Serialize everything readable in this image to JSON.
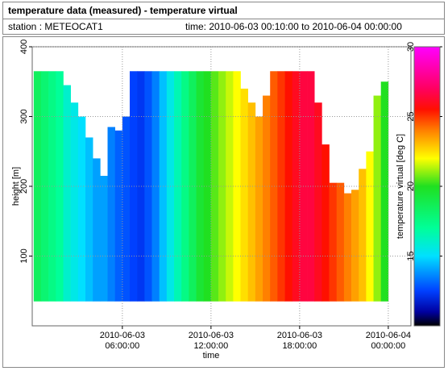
{
  "chart_data": {
    "type": "heatmap",
    "title": "temperature data (measured) - temperature virtual",
    "station": "station : METEOCAT1",
    "time_range": "time: 2010-06-03 00:10:00 to 2010-06-04 00:00:00",
    "xlabel": "time",
    "ylabel": "height [m]",
    "colorbar_label": "temperature virtual [deg C]",
    "xlim": [
      "2010-06-02 23:54:00",
      "2010-06-04 01:32:00"
    ],
    "xticks": [
      "2010-06-03 06:00:00",
      "2010-06-03 12:00:00",
      "2010-06-03 18:00:00",
      "2010-06-04 00:00:00"
    ],
    "ylim": [
      0,
      400
    ],
    "yticks": [
      100,
      200,
      300,
      400
    ],
    "clim": [
      10,
      30
    ],
    "cticks": [
      15,
      20,
      25,
      30
    ],
    "grid": true,
    "colormap": [
      {
        "value": 10,
        "color": "#000000"
      },
      {
        "value": 11,
        "color": "#0000a0"
      },
      {
        "value": 12.5,
        "color": "#0040ff"
      },
      {
        "value": 15,
        "color": "#00e0ff"
      },
      {
        "value": 17,
        "color": "#00ff99"
      },
      {
        "value": 20,
        "color": "#20e020"
      },
      {
        "value": 22,
        "color": "#ffff00"
      },
      {
        "value": 24,
        "color": "#ff8000"
      },
      {
        "value": 25.5,
        "color": "#ff1000"
      },
      {
        "value": 27,
        "color": "#ff0060"
      },
      {
        "value": 30,
        "color": "#ff00ff"
      }
    ],
    "base": 35,
    "x": [
      "2010-06-03 00:00:00",
      "2010-06-03 00:30:00",
      "2010-06-03 01:00:00",
      "2010-06-03 01:30:00",
      "2010-06-03 02:00:00",
      "2010-06-03 02:30:00",
      "2010-06-03 03:00:00",
      "2010-06-03 03:30:00",
      "2010-06-03 04:00:00",
      "2010-06-03 04:30:00",
      "2010-06-03 05:00:00",
      "2010-06-03 05:30:00",
      "2010-06-03 06:00:00",
      "2010-06-03 06:30:00",
      "2010-06-03 07:00:00",
      "2010-06-03 07:30:00",
      "2010-06-03 08:00:00",
      "2010-06-03 08:30:00",
      "2010-06-03 09:00:00",
      "2010-06-03 09:30:00",
      "2010-06-03 10:00:00",
      "2010-06-03 10:30:00",
      "2010-06-03 11:00:00",
      "2010-06-03 11:30:00",
      "2010-06-03 12:00:00",
      "2010-06-03 12:30:00",
      "2010-06-03 13:00:00",
      "2010-06-03 13:30:00",
      "2010-06-03 14:00:00",
      "2010-06-03 14:30:00",
      "2010-06-03 15:00:00",
      "2010-06-03 15:30:00",
      "2010-06-03 16:00:00",
      "2010-06-03 16:30:00",
      "2010-06-03 17:00:00",
      "2010-06-03 17:30:00",
      "2010-06-03 18:00:00",
      "2010-06-03 18:30:00",
      "2010-06-03 19:00:00",
      "2010-06-03 19:30:00",
      "2010-06-03 20:00:00",
      "2010-06-03 20:30:00",
      "2010-06-03 21:00:00",
      "2010-06-03 21:30:00",
      "2010-06-03 22:00:00",
      "2010-06-03 22:30:00",
      "2010-06-03 23:00:00",
      "2010-06-03 23:30:00"
    ],
    "tops": [
      365,
      365,
      365,
      365,
      345,
      320,
      300,
      270,
      240,
      215,
      285,
      280,
      300,
      365,
      365,
      365,
      365,
      365,
      365,
      365,
      365,
      365,
      365,
      365,
      365,
      365,
      365,
      365,
      340,
      320,
      300,
      330,
      365,
      365,
      365,
      365,
      365,
      365,
      320,
      260,
      205,
      205,
      190,
      195,
      225,
      250,
      330,
      350
    ],
    "values": [
      18.5,
      18,
      17.5,
      17,
      16,
      15.5,
      15,
      14.5,
      14,
      14,
      13.5,
      13,
      12.8,
      12.5,
      12.3,
      12.8,
      13.5,
      14.5,
      15.5,
      16.5,
      17.5,
      18.5,
      19.5,
      20,
      20.5,
      21,
      21.5,
      22,
      22.5,
      23,
      23.5,
      24,
      24.5,
      25,
      25.5,
      26,
      26.5,
      26.5,
      26,
      25.5,
      25,
      24.5,
      24,
      23.5,
      23,
      22,
      21,
      20
    ]
  }
}
